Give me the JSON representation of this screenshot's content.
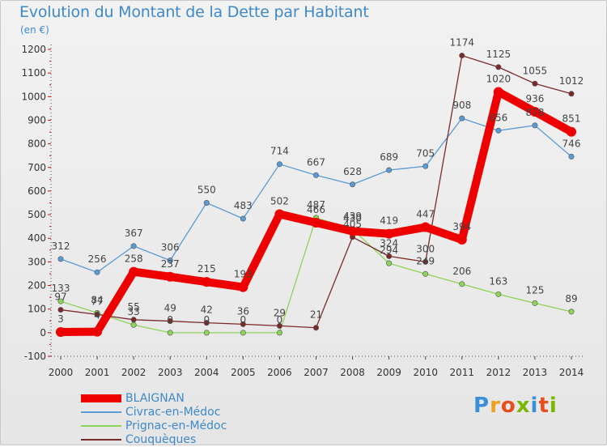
{
  "title": "Evolution du Montant de la Dette par Habitant",
  "subtitle": "(en €)",
  "brand": "Proxiti",
  "chart_data": {
    "type": "line",
    "x": [
      "2000",
      "2001",
      "2002",
      "2003",
      "2004",
      "2005",
      "2006",
      "2007",
      "2008",
      "2009",
      "2010",
      "2011",
      "2012",
      "2013",
      "2014"
    ],
    "ylim": [
      -100,
      1200
    ],
    "yticks": [
      -100,
      0,
      100,
      200,
      300,
      400,
      500,
      600,
      700,
      800,
      900,
      1000,
      1100,
      1200
    ],
    "grid": false,
    "legend_position": "bottom-left",
    "series": [
      {
        "name": "BLAIGNAN",
        "color": "#ee0000",
        "values": [
          3,
          4,
          258,
          237,
          215,
          193,
          502,
          466,
          430,
          419,
          447,
          394,
          1020,
          936,
          851
        ]
      },
      {
        "name": "Civrac-en-Médoc",
        "color": "#5b9bd5",
        "values": [
          312,
          256,
          367,
          306,
          550,
          483,
          714,
          667,
          628,
          689,
          705,
          908,
          856,
          878,
          746
        ]
      },
      {
        "name": "Prignac-en-Médoc",
        "color": "#8fd45a",
        "values": [
          133,
          84,
          33,
          0,
          0,
          0,
          0,
          487,
          439,
          294,
          249,
          206,
          163,
          125,
          89
        ]
      },
      {
        "name": "Couquèques",
        "color": "#7a2a2a",
        "values": [
          97,
          77,
          55,
          49,
          42,
          36,
          29,
          21,
          405,
          324,
          300,
          1174,
          1125,
          1055,
          1012
        ]
      }
    ]
  }
}
